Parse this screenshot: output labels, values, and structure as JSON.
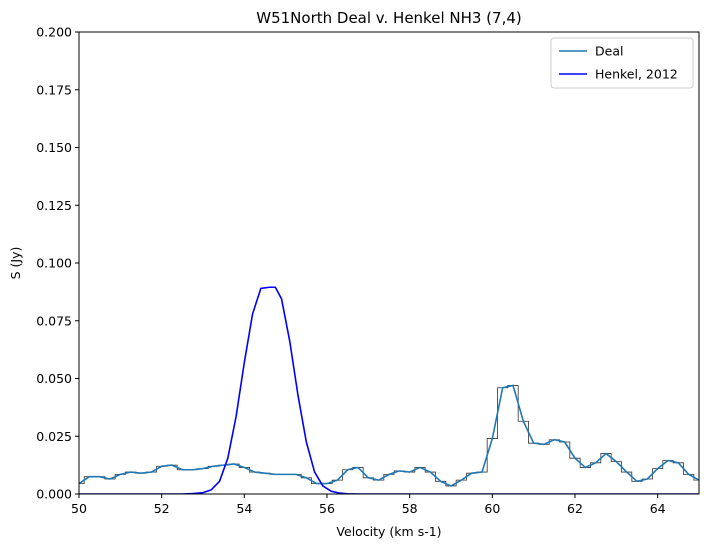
{
  "chart_data": {
    "type": "line",
    "title": "W51North Deal v. Henkel NH3 (7,4)",
    "xlabel": "Velocity (km s-1)",
    "ylabel": "S (Jy)",
    "xlim": [
      50,
      65
    ],
    "ylim": [
      0,
      0.2
    ],
    "xticks": [
      50,
      52,
      54,
      56,
      58,
      60,
      62,
      64
    ],
    "yticks": [
      0.0,
      0.025,
      0.05,
      0.075,
      0.1,
      0.125,
      0.15,
      0.175,
      0.2
    ],
    "ytick_labels": [
      "0.000",
      "0.025",
      "0.050",
      "0.075",
      "0.100",
      "0.125",
      "0.150",
      "0.175",
      "0.200"
    ],
    "grid": false,
    "legend_position": "top-right",
    "colors": {
      "deal": "#1f77b4",
      "henkel": "#0000ff",
      "steps": "#333333"
    },
    "series": [
      {
        "name": "Deal",
        "x": [
          50.0,
          50.25,
          50.5,
          50.75,
          51.0,
          51.25,
          51.5,
          51.75,
          52.0,
          52.25,
          52.5,
          52.75,
          53.0,
          53.25,
          53.5,
          53.75,
          54.0,
          54.25,
          54.5,
          54.75,
          55.0,
          55.25,
          55.5,
          55.75,
          56.0,
          56.25,
          56.5,
          56.75,
          57.0,
          57.25,
          57.5,
          57.75,
          58.0,
          58.25,
          58.5,
          58.75,
          59.0,
          59.25,
          59.5,
          59.75,
          60.0,
          60.25,
          60.5,
          60.75,
          61.0,
          61.25,
          61.5,
          61.75,
          62.0,
          62.25,
          62.5,
          62.75,
          63.0,
          63.25,
          63.5,
          63.75,
          64.0,
          64.25,
          64.5,
          64.75,
          65.0
        ],
        "y": [
          0.0045,
          0.0075,
          0.0075,
          0.0065,
          0.0085,
          0.0095,
          0.009,
          0.0095,
          0.012,
          0.0125,
          0.0105,
          0.0105,
          0.011,
          0.012,
          0.0125,
          0.013,
          0.0115,
          0.0095,
          0.009,
          0.0085,
          0.0085,
          0.0085,
          0.007,
          0.0045,
          0.0045,
          0.006,
          0.0105,
          0.0115,
          0.007,
          0.006,
          0.0085,
          0.01,
          0.0095,
          0.0115,
          0.0095,
          0.0055,
          0.0035,
          0.006,
          0.009,
          0.0095,
          0.024,
          0.046,
          0.047,
          0.0315,
          0.022,
          0.0215,
          0.0235,
          0.0225,
          0.0155,
          0.0115,
          0.0135,
          0.0175,
          0.014,
          0.0095,
          0.0055,
          0.0065,
          0.011,
          0.0145,
          0.0135,
          0.0085,
          0.006
        ]
      },
      {
        "name": "Henkel, 2012",
        "x": [
          50.0,
          52.5,
          52.75,
          53.0,
          53.2,
          53.4,
          53.6,
          53.8,
          54.0,
          54.2,
          54.4,
          54.6,
          54.75,
          54.9,
          55.1,
          55.3,
          55.5,
          55.7,
          55.9,
          56.1,
          56.3,
          56.5,
          56.8,
          57.2,
          65.0
        ],
        "y": [
          0.0,
          0.0,
          0.0002,
          0.0006,
          0.0018,
          0.0055,
          0.0155,
          0.0335,
          0.057,
          0.078,
          0.089,
          0.0895,
          0.0895,
          0.0845,
          0.066,
          0.0425,
          0.0225,
          0.0095,
          0.0035,
          0.0012,
          0.0004,
          0.0001,
          0.0,
          0.0,
          0.0
        ]
      }
    ]
  }
}
